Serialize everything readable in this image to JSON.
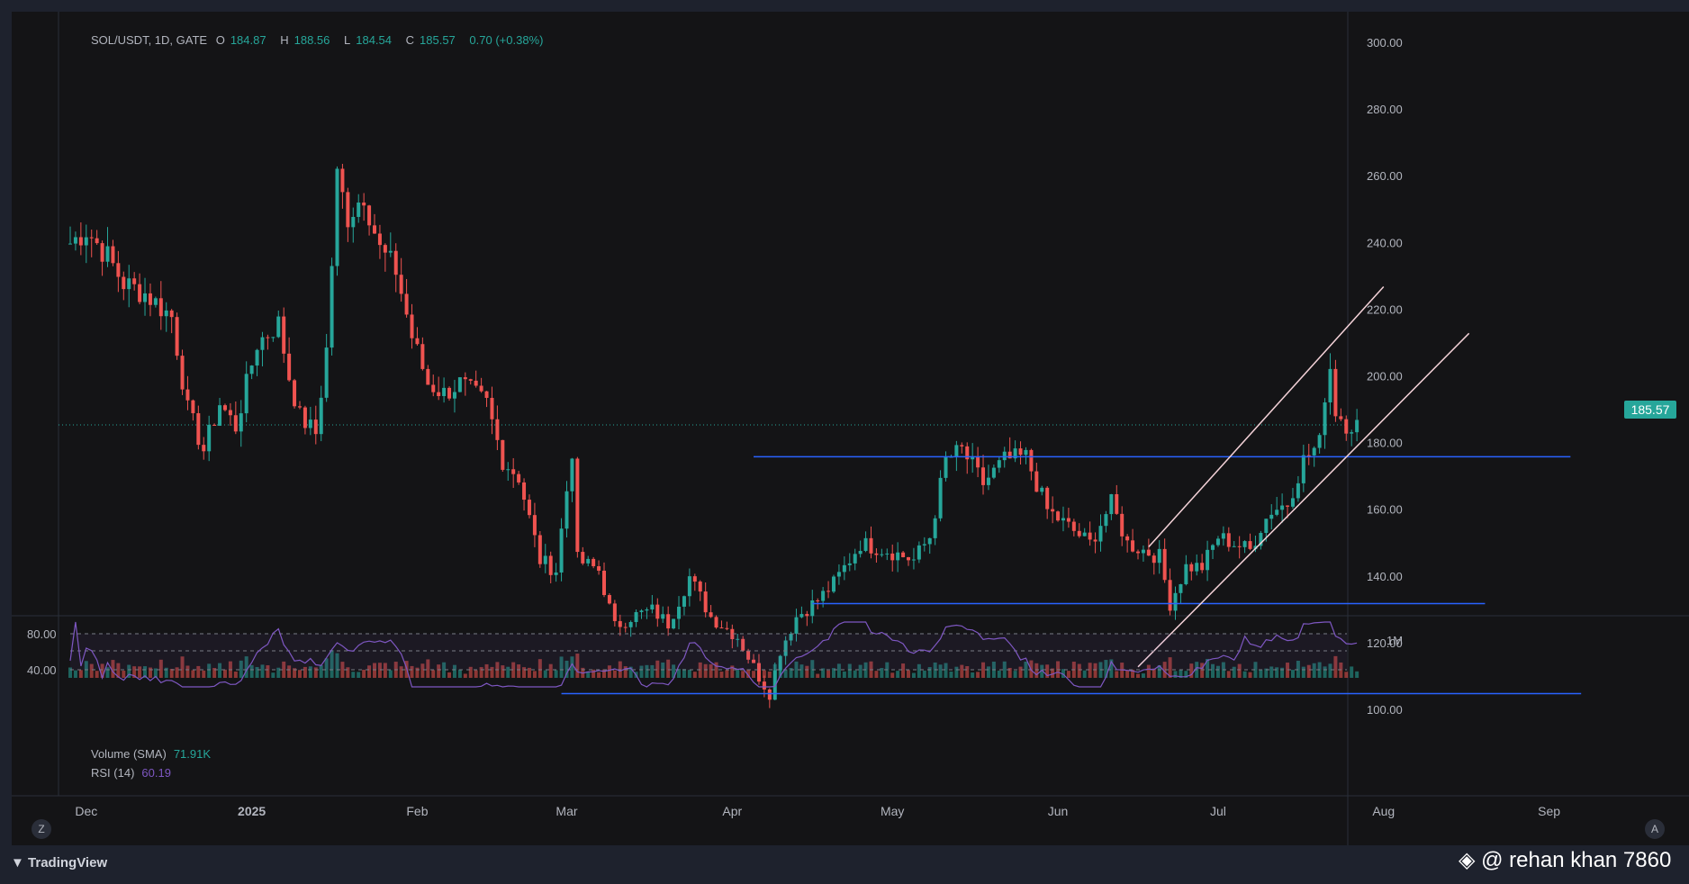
{
  "legend": {
    "symbol": "SOL/USDT, 1D, GATE",
    "open_label": "O",
    "open": "184.87",
    "high_label": "H",
    "high": "188.56",
    "low_label": "L",
    "low": "184.54",
    "close_label": "C",
    "close": "185.57",
    "change": "0.70 (+0.38%)"
  },
  "last_price_badge": "185.57",
  "volume_legend": {
    "name": "Volume (SMA)",
    "value": "71.91K"
  },
  "rsi_legend": {
    "name": "RSI (14)",
    "value": "60.19"
  },
  "indicator_axis": {
    "top": "80.00",
    "bottom": "40.00",
    "volume_label": "1M"
  },
  "buttons": {
    "left": "Z",
    "right": "A"
  },
  "footer": {
    "brand": "TradingView"
  },
  "watermark": "@ rehan khan 7860",
  "colors": {
    "up": "#26a69a",
    "down": "#ef5350",
    "rsi": "#7e57c2",
    "level": "#2962ff",
    "channel": "#f5d3d9"
  },
  "chart_data": {
    "type": "candlestick",
    "title": "SOL/USDT, 1D, GATE",
    "ylim": [
      95,
      305
    ],
    "y_ticks": [
      "300.00",
      "280.00",
      "260.00",
      "240.00",
      "220.00",
      "200.00",
      "180.00",
      "160.00",
      "140.00",
      "120.00",
      "100.00"
    ],
    "x_ticks": [
      "Dec",
      "2025",
      "Feb",
      "Mar",
      "Apr",
      "May",
      "Jun",
      "Jul",
      "Aug",
      "Sep"
    ],
    "current_price": 185.57,
    "anchors": [
      [
        "2024-11-28",
        240
      ],
      [
        "2024-12-01",
        244
      ],
      [
        "2024-12-05",
        236
      ],
      [
        "2024-12-08",
        228
      ],
      [
        "2024-12-12",
        225
      ],
      [
        "2024-12-17",
        218
      ],
      [
        "2024-12-20",
        190
      ],
      [
        "2024-12-23",
        178
      ],
      [
        "2024-12-26",
        192
      ],
      [
        "2024-12-29",
        185
      ],
      [
        "2025-01-02",
        210
      ],
      [
        "2025-01-06",
        216
      ],
      [
        "2025-01-08",
        200
      ],
      [
        "2025-01-10",
        188
      ],
      [
        "2025-01-13",
        183
      ],
      [
        "2025-01-15",
        208
      ],
      [
        "2025-01-17",
        260
      ],
      [
        "2025-01-19",
        248
      ],
      [
        "2025-01-22",
        255
      ],
      [
        "2025-01-25",
        238
      ],
      [
        "2025-01-28",
        232
      ],
      [
        "2025-01-31",
        212
      ],
      [
        "2025-02-03",
        198
      ],
      [
        "2025-02-06",
        195
      ],
      [
        "2025-02-09",
        198
      ],
      [
        "2025-02-14",
        192
      ],
      [
        "2025-02-17",
        175
      ],
      [
        "2025-02-20",
        170
      ],
      [
        "2025-02-24",
        145
      ],
      [
        "2025-02-27",
        142
      ],
      [
        "2025-03-02",
        178
      ],
      [
        "2025-03-03",
        145
      ],
      [
        "2025-03-07",
        142
      ],
      [
        "2025-03-10",
        125
      ],
      [
        "2025-03-13",
        128
      ],
      [
        "2025-03-17",
        130
      ],
      [
        "2025-03-20",
        126
      ],
      [
        "2025-03-24",
        140
      ],
      [
        "2025-03-28",
        128
      ],
      [
        "2025-04-02",
        122
      ],
      [
        "2025-04-06",
        110
      ],
      [
        "2025-04-08",
        105
      ],
      [
        "2025-04-10",
        118
      ],
      [
        "2025-04-13",
        128
      ],
      [
        "2025-04-17",
        133
      ],
      [
        "2025-04-20",
        138
      ],
      [
        "2025-04-25",
        150
      ],
      [
        "2025-04-30",
        148
      ],
      [
        "2025-05-05",
        145
      ],
      [
        "2025-05-08",
        152
      ],
      [
        "2025-05-11",
        175
      ],
      [
        "2025-05-14",
        178
      ],
      [
        "2025-05-18",
        168
      ],
      [
        "2025-05-22",
        175
      ],
      [
        "2025-05-26",
        176
      ],
      [
        "2025-05-30",
        160
      ],
      [
        "2025-06-03",
        155
      ],
      [
        "2025-06-07",
        150
      ],
      [
        "2025-06-11",
        162
      ],
      [
        "2025-06-14",
        150
      ],
      [
        "2025-06-17",
        148
      ],
      [
        "2025-06-20",
        146
      ],
      [
        "2025-06-22",
        132
      ],
      [
        "2025-06-25",
        143
      ],
      [
        "2025-06-28",
        143
      ],
      [
        "2025-07-01",
        152
      ],
      [
        "2025-07-04",
        150
      ],
      [
        "2025-07-07",
        148
      ],
      [
        "2025-07-09",
        155
      ],
      [
        "2025-07-11",
        160
      ],
      [
        "2025-07-14",
        162
      ],
      [
        "2025-07-17",
        175
      ],
      [
        "2025-07-20",
        180
      ],
      [
        "2025-07-21",
        195
      ],
      [
        "2025-07-22",
        203
      ],
      [
        "2025-07-23",
        190
      ],
      [
        "2025-07-25",
        186
      ],
      [
        "2025-07-27",
        185.57
      ]
    ],
    "horizontal_levels": [
      {
        "price": 176,
        "from": "2025-04-05",
        "to": "2025-09-05"
      },
      {
        "price": 132,
        "from": "2025-04-16",
        "to": "2025-08-20"
      },
      {
        "price": 105,
        "from": "2025-02-28",
        "to": "2025-09-07"
      }
    ],
    "channel_lines": [
      {
        "from": [
          "2025-06-18",
          149
        ],
        "to": [
          "2025-08-01",
          227
        ]
      },
      {
        "from": [
          "2025-06-16",
          113
        ],
        "to": [
          "2025-08-17",
          213
        ]
      }
    ]
  }
}
